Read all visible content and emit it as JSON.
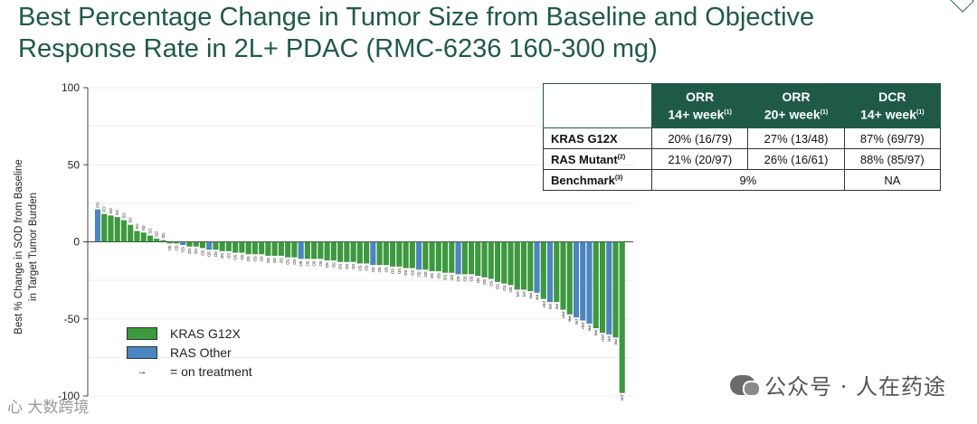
{
  "slide": {
    "title": "Best Percentage Change in Tumor Size from Baseline and Objective Response Rate in 2L+ PDAC (RMC-6236 160-300 mg)",
    "watermark": "公众号 · 人在药途",
    "watermark_left": "心 大数跨境"
  },
  "legend": {
    "items": [
      {
        "label": "KRAS G12X",
        "color": "#3a9a3c"
      },
      {
        "label": "RAS Other",
        "color": "#4a86c0"
      }
    ],
    "arrow_symbol": "→",
    "arrow_label": "= on treatment"
  },
  "table": {
    "headers": [
      {
        "line1": "ORR",
        "line2": "14+ week",
        "sup": "(1)"
      },
      {
        "line1": "ORR",
        "line2": "20+ week",
        "sup": "(1)"
      },
      {
        "line1": "DCR",
        "line2": "14+ week",
        "sup": "(1)"
      }
    ],
    "rows": [
      {
        "label": "KRAS G12X",
        "label_sup": "",
        "cells": [
          "20% (16/79)",
          "27% (13/48)",
          "87% (69/79)"
        ]
      },
      {
        "label": "RAS Mutant",
        "label_sup": "(2)",
        "cells": [
          "21% (20/97)",
          "26% (16/61)",
          "88% (85/97)"
        ]
      }
    ],
    "benchmark": {
      "label": "Benchmark",
      "label_sup": "(3)",
      "orr": "9%",
      "dcr": "NA"
    }
  },
  "chart_data": {
    "type": "bar",
    "title": "",
    "xlabel": "",
    "ylabel_line1": "Best % Change in SOD from Baseline",
    "ylabel_line2": "in Target Tumor Burden",
    "ylim": [
      -100,
      100
    ],
    "yticks": [
      100,
      50,
      0,
      -50,
      -100
    ],
    "colors": {
      "KRAS G12X": "#3a9a3c",
      "RAS Other": "#4a86c0"
    },
    "series": [
      {
        "name": "KRAS G12X",
        "values": [
          18,
          17,
          16,
          14,
          11,
          7,
          6,
          4,
          2,
          1,
          -1,
          -1,
          -3,
          -3,
          -4,
          -5,
          -6,
          -6,
          -7,
          -7,
          -8,
          -8,
          -8,
          -9,
          -9,
          -9,
          -10,
          -10,
          -11,
          -11,
          -11,
          -12,
          -12,
          -13,
          -13,
          -13,
          -14,
          -14,
          -15,
          -15,
          -16,
          -16,
          -17,
          -17,
          -18,
          -19,
          -19,
          -20,
          -20,
          -21,
          -21,
          -22,
          -23,
          -24,
          -26,
          -27,
          -28,
          -31,
          -31,
          -32,
          -37,
          -39,
          -44,
          -47,
          -56,
          -59,
          -62,
          -98
        ]
      },
      {
        "name": "RAS Other",
        "values": [
          21,
          -2,
          -5,
          -11,
          -15,
          -18,
          -21,
          -33,
          -39,
          -49,
          -51,
          -53,
          -60
        ]
      }
    ],
    "bars": [
      {
        "v": 21,
        "g": "RAS Other",
        "lab": "PD"
      },
      {
        "v": 18,
        "g": "KRAS G12X",
        "lab": "PD"
      },
      {
        "v": 17,
        "g": "KRAS G12X",
        "lab": "SD"
      },
      {
        "v": 16,
        "g": "KRAS G12X",
        "lab": "SD"
      },
      {
        "v": 14,
        "g": "KRAS G12X",
        "lab": "SD"
      },
      {
        "v": 11,
        "g": "KRAS G12X",
        "lab": "SD"
      },
      {
        "v": 7,
        "g": "KRAS G12X",
        "lab": "SD"
      },
      {
        "v": 6,
        "g": "KRAS G12X",
        "lab": "SD"
      },
      {
        "v": 4,
        "g": "KRAS G12X",
        "lab": "SD"
      },
      {
        "v": 2,
        "g": "KRAS G12X",
        "lab": "SD"
      },
      {
        "v": 1,
        "g": "KRAS G12X",
        "lab": "SD"
      },
      {
        "v": -1,
        "g": "KRAS G12X",
        "lab": "SD"
      },
      {
        "v": -1,
        "g": "KRAS G12X",
        "lab": "SD"
      },
      {
        "v": -2,
        "g": "RAS Other",
        "lab": "SD"
      },
      {
        "v": -3,
        "g": "KRAS G12X",
        "lab": "SD"
      },
      {
        "v": -3,
        "g": "KRAS G12X",
        "lab": "SD"
      },
      {
        "v": -4,
        "g": "KRAS G12X",
        "lab": "SD"
      },
      {
        "v": -5,
        "g": "RAS Other",
        "lab": "SD"
      },
      {
        "v": -5,
        "g": "KRAS G12X",
        "lab": "SD"
      },
      {
        "v": -6,
        "g": "KRAS G12X",
        "lab": "SD"
      },
      {
        "v": -6,
        "g": "KRAS G12X",
        "lab": "SD"
      },
      {
        "v": -7,
        "g": "KRAS G12X",
        "lab": "SD"
      },
      {
        "v": -7,
        "g": "KRAS G12X",
        "lab": "SD"
      },
      {
        "v": -8,
        "g": "KRAS G12X",
        "lab": "SD"
      },
      {
        "v": -8,
        "g": "KRAS G12X",
        "lab": "SD"
      },
      {
        "v": -8,
        "g": "KRAS G12X",
        "lab": "SD"
      },
      {
        "v": -9,
        "g": "KRAS G12X",
        "lab": "SD"
      },
      {
        "v": -9,
        "g": "KRAS G12X",
        "lab": "SD"
      },
      {
        "v": -9,
        "g": "KRAS G12X",
        "lab": "SD"
      },
      {
        "v": -10,
        "g": "KRAS G12X",
        "lab": "SD"
      },
      {
        "v": -10,
        "g": "KRAS G12X",
        "lab": "SD"
      },
      {
        "v": -11,
        "g": "RAS Other",
        "lab": "SD"
      },
      {
        "v": -11,
        "g": "KRAS G12X",
        "lab": "SD"
      },
      {
        "v": -11,
        "g": "KRAS G12X",
        "lab": "SD"
      },
      {
        "v": -11,
        "g": "KRAS G12X",
        "lab": "SD"
      },
      {
        "v": -12,
        "g": "KRAS G12X",
        "lab": "SD"
      },
      {
        "v": -12,
        "g": "KRAS G12X",
        "lab": "SD"
      },
      {
        "v": -13,
        "g": "KRAS G12X",
        "lab": "SD"
      },
      {
        "v": -13,
        "g": "KRAS G12X",
        "lab": "SD"
      },
      {
        "v": -13,
        "g": "KRAS G12X",
        "lab": "SD"
      },
      {
        "v": -14,
        "g": "KRAS G12X",
        "lab": "SD"
      },
      {
        "v": -14,
        "g": "KRAS G12X",
        "lab": "SD"
      },
      {
        "v": -15,
        "g": "RAS Other",
        "lab": "SD"
      },
      {
        "v": -15,
        "g": "KRAS G12X",
        "lab": "SD"
      },
      {
        "v": -15,
        "g": "KRAS G12X",
        "lab": "SD"
      },
      {
        "v": -16,
        "g": "KRAS G12X",
        "lab": "SD"
      },
      {
        "v": -16,
        "g": "KRAS G12X",
        "lab": "SD"
      },
      {
        "v": -17,
        "g": "KRAS G12X",
        "lab": "SD"
      },
      {
        "v": -17,
        "g": "KRAS G12X",
        "lab": "SD"
      },
      {
        "v": -18,
        "g": "RAS Other",
        "lab": "SD"
      },
      {
        "v": -18,
        "g": "KRAS G12X",
        "lab": "SD"
      },
      {
        "v": -19,
        "g": "KRAS G12X",
        "lab": "SD"
      },
      {
        "v": -19,
        "g": "KRAS G12X",
        "lab": "SD"
      },
      {
        "v": -20,
        "g": "KRAS G12X",
        "lab": "SD"
      },
      {
        "v": -20,
        "g": "KRAS G12X",
        "lab": "SD"
      },
      {
        "v": -21,
        "g": "RAS Other",
        "lab": "SD"
      },
      {
        "v": -21,
        "g": "KRAS G12X",
        "lab": "SD"
      },
      {
        "v": -21,
        "g": "KRAS G12X",
        "lab": "SD"
      },
      {
        "v": -22,
        "g": "KRAS G12X",
        "lab": "SD"
      },
      {
        "v": -23,
        "g": "KRAS G12X",
        "lab": "SD"
      },
      {
        "v": -24,
        "g": "KRAS G12X",
        "lab": "SD"
      },
      {
        "v": -26,
        "g": "KRAS G12X",
        "lab": "SD"
      },
      {
        "v": -27,
        "g": "KRAS G12X",
        "lab": "SD"
      },
      {
        "v": -28,
        "g": "KRAS G12X",
        "lab": "SD"
      },
      {
        "v": -31,
        "g": "KRAS G12X",
        "lab": "PR"
      },
      {
        "v": -31,
        "g": "KRAS G12X",
        "lab": "PR"
      },
      {
        "v": -32,
        "g": "KRAS G12X",
        "lab": "PR"
      },
      {
        "v": -33,
        "g": "RAS Other",
        "lab": "PR"
      },
      {
        "v": -37,
        "g": "KRAS G12X",
        "lab": "PR*"
      },
      {
        "v": -39,
        "g": "RAS Other",
        "lab": "PR"
      },
      {
        "v": -39,
        "g": "KRAS G12X",
        "lab": "PR"
      },
      {
        "v": -44,
        "g": "KRAS G12X",
        "lab": "PR*"
      },
      {
        "v": -47,
        "g": "KRAS G12X",
        "lab": "PR"
      },
      {
        "v": -49,
        "g": "RAS Other",
        "lab": "PR"
      },
      {
        "v": -51,
        "g": "RAS Other",
        "lab": "PR*"
      },
      {
        "v": -53,
        "g": "RAS Other",
        "lab": "PR"
      },
      {
        "v": -56,
        "g": "KRAS G12X",
        "lab": "PR"
      },
      {
        "v": -59,
        "g": "KRAS G12X",
        "lab": "PR*"
      },
      {
        "v": -60,
        "g": "RAS Other",
        "lab": "PR"
      },
      {
        "v": -62,
        "g": "KRAS G12X",
        "lab": "PR"
      },
      {
        "v": -98,
        "g": "KRAS G12X",
        "lab": "CR"
      }
    ]
  }
}
